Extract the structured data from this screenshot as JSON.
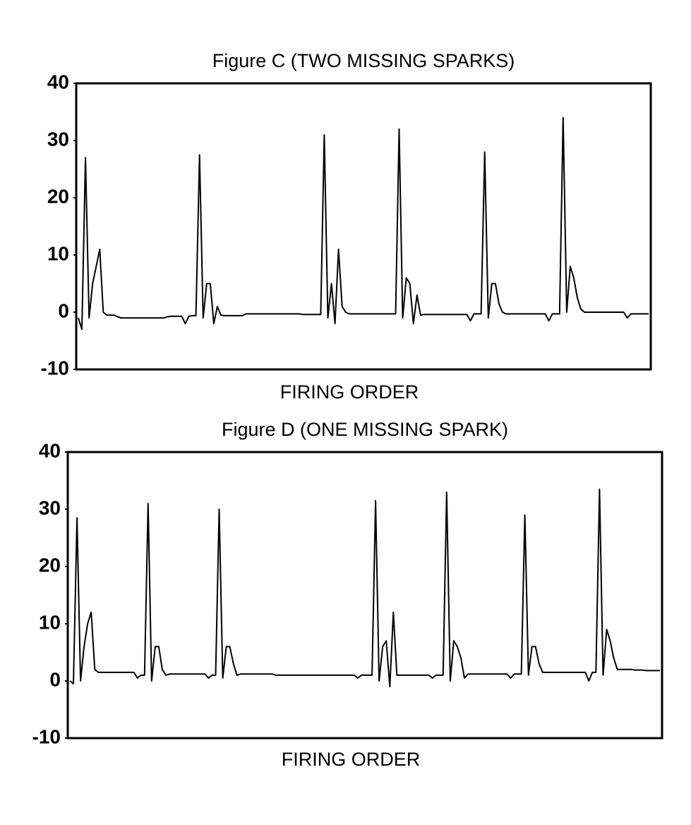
{
  "chart_data": [
    {
      "type": "line",
      "title": "Figure C (TWO MISSING SPARKS)",
      "xlabel": "FIRING ORDER",
      "color": "#000000",
      "ylim": [
        -10,
        40
      ],
      "yticks": [
        -10,
        0,
        10,
        20,
        30,
        40
      ],
      "values": [
        -1,
        -3,
        27,
        -1,
        5,
        8,
        11,
        0,
        -0.5,
        -0.5,
        -0.5,
        -0.8,
        -1,
        -1,
        -1,
        -1,
        -1,
        -1,
        -1,
        -1,
        -1,
        -1,
        -1,
        -1,
        -1,
        -0.8,
        -0.7,
        -0.7,
        -0.7,
        -0.7,
        -2,
        -0.7,
        -0.6,
        -0.6,
        27.5,
        -1,
        5,
        5,
        -2,
        1,
        -0.5,
        -0.6,
        -0.6,
        -0.6,
        -0.6,
        -0.6,
        -0.6,
        -0.3,
        -0.3,
        -0.3,
        -0.3,
        -0.3,
        -0.3,
        -0.3,
        -0.3,
        -0.3,
        -0.3,
        -0.3,
        -0.3,
        -0.3,
        -0.3,
        -0.3,
        -0.3,
        -0.4,
        -0.4,
        -0.4,
        -0.4,
        -0.4,
        -0.4,
        31,
        -1,
        5,
        -2,
        11,
        1,
        0,
        -0.3,
        -0.3,
        -0.3,
        -0.3,
        -0.3,
        -0.3,
        -0.3,
        -0.3,
        -0.3,
        -0.3,
        -0.3,
        -0.3,
        -0.3,
        -0.3,
        32,
        -1,
        6,
        5,
        -2,
        3,
        -0.5,
        -0.4,
        -0.4,
        -0.4,
        -0.4,
        -0.4,
        -0.4,
        -0.4,
        -0.4,
        -0.4,
        -0.4,
        -0.4,
        -0.4,
        -0.4,
        -1.5,
        -0.3,
        -0.3,
        -0.3,
        28,
        -1,
        5,
        5,
        1.5,
        0,
        -0.3,
        -0.3,
        -0.3,
        -0.3,
        -0.3,
        -0.3,
        -0.3,
        -0.3,
        -0.3,
        -0.3,
        -0.3,
        -0.3,
        -1.5,
        -0.3,
        -0.3,
        -0.3,
        34,
        0,
        8,
        6,
        2.5,
        0.5,
        0,
        0,
        0,
        0,
        0,
        0,
        0,
        0,
        0,
        0,
        0,
        0,
        -1,
        -0.3,
        -0.3,
        -0.3,
        -0.3,
        -0.3,
        -0.3
      ]
    },
    {
      "type": "line",
      "title": "Figure D (ONE MISSING SPARK)",
      "xlabel": "FIRING ORDER",
      "color": "#000000",
      "ylim": [
        -10,
        40
      ],
      "yticks": [
        -10,
        0,
        10,
        20,
        30,
        40
      ],
      "values": [
        0,
        -0.5,
        28.5,
        0,
        6,
        10,
        12,
        2,
        1.5,
        1.5,
        1.5,
        1.5,
        1.5,
        1.5,
        1.5,
        1.5,
        1.5,
        1.5,
        1.5,
        0.5,
        1,
        1,
        31,
        0,
        6,
        6,
        2,
        1,
        1.2,
        1.2,
        1.2,
        1.2,
        1.2,
        1.2,
        1.2,
        1.2,
        1.2,
        1.2,
        1.2,
        0.5,
        1,
        1,
        30,
        0.5,
        6,
        6,
        3,
        1,
        1.2,
        1.2,
        1.2,
        1.2,
        1.2,
        1.2,
        1.2,
        1.2,
        1.2,
        1.2,
        1,
        1,
        1,
        1,
        1,
        1,
        1,
        1,
        1,
        1,
        1,
        1,
        1,
        1,
        1,
        1,
        1,
        1,
        1,
        1,
        1,
        1,
        1,
        0.5,
        1,
        1,
        1,
        1,
        31.5,
        0,
        6,
        7,
        -1,
        12,
        1,
        1,
        1,
        1,
        1,
        1,
        1,
        1,
        1,
        1,
        0.5,
        1,
        1,
        1,
        33,
        0,
        7,
        6,
        4,
        0.5,
        1.2,
        1.2,
        1.2,
        1.2,
        1.2,
        1.2,
        1.2,
        1.2,
        1.2,
        1.2,
        1.2,
        1.2,
        0.5,
        1.2,
        1.2,
        1.2,
        29,
        1,
        6,
        6,
        3,
        1.5,
        1.5,
        1.5,
        1.5,
        1.5,
        1.5,
        1.5,
        1.5,
        1.5,
        1.5,
        1.5,
        1.5,
        1.5,
        0,
        1.5,
        1.5,
        33.5,
        1,
        9,
        7,
        4,
        2,
        2,
        2,
        2,
        2,
        1.9,
        1.9,
        1.9,
        1.8,
        1.8,
        1.8,
        1.8,
        1.8
      ]
    }
  ]
}
